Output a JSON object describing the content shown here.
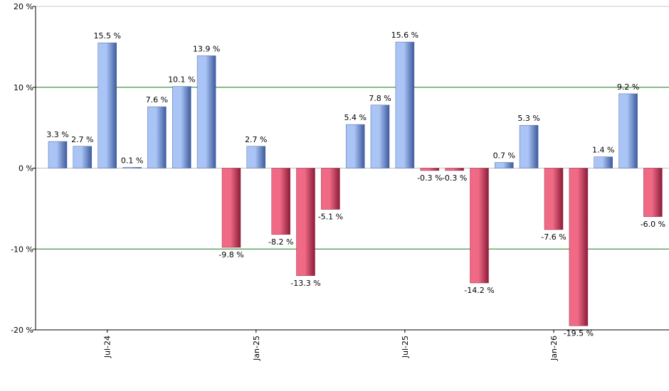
{
  "chart_data": {
    "type": "bar",
    "title": "",
    "xlabel": "",
    "ylabel": "",
    "ylim": [
      -20,
      20
    ],
    "y_ticks": [
      20,
      10,
      0,
      -10,
      -20
    ],
    "y_tick_labels": [
      "20 %",
      "10 %",
      "0 %",
      "-10 %",
      "-20 %"
    ],
    "x_tick_labels": [
      {
        "label": "Jul-24",
        "index": 2
      },
      {
        "label": "Jan-25",
        "index": 8
      },
      {
        "label": "Jul-25",
        "index": 14
      },
      {
        "label": "Jan-26",
        "index": 20
      }
    ],
    "values": [
      3.3,
      2.7,
      15.5,
      0.1,
      7.6,
      10.1,
      13.9,
      -9.8,
      2.7,
      -8.2,
      -13.3,
      -5.1,
      5.4,
      7.8,
      15.6,
      -0.3,
      -0.3,
      -14.2,
      0.7,
      5.3,
      -7.6,
      -19.5,
      1.4,
      9.2,
      -6.0
    ],
    "data_labels": [
      "3.3 %",
      "2.7 %",
      "15.5 %",
      "0.1 %",
      "7.6 %",
      "10.1 %",
      "13.9 %",
      "-9.8 %",
      "2.7 %",
      "-8.2 %",
      "-13.3 %",
      "-5.1 %",
      "5.4 %",
      "7.8 %",
      "15.6 %",
      "-0.3 %",
      "-0.3 %",
      "-14.2 %",
      "0.7 %",
      "5.3 %",
      "-7.6 %",
      "-19.5 %",
      "1.4 %",
      "9.2 %",
      "-6.0 %"
    ],
    "gridlines_major": [
      10,
      -10
    ],
    "colors": {
      "positive_light": "#a9c4f5",
      "positive_dark": "#3e5a9c",
      "negative_light": "#f06a86",
      "negative_dark": "#8a1c38",
      "grid": "#1f7a1f",
      "zero_line": "#c0c0c0",
      "axis": "#000000"
    }
  }
}
